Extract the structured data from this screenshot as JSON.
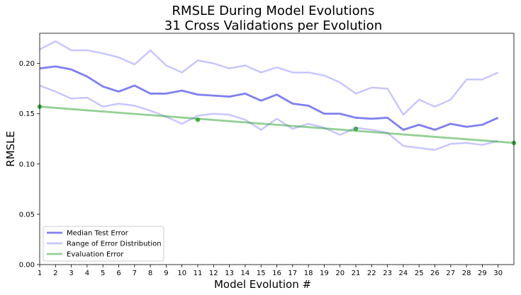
{
  "chart_data": {
    "type": "line",
    "title": [
      "RMSLE During Model Evolutions",
      "31 Cross Validations per Evolution"
    ],
    "xlabel": "Model Evolution #",
    "ylabel": "RMSLE",
    "xlim": [
      1,
      31
    ],
    "ylim": [
      0,
      0.23
    ],
    "x_ticks": [
      1,
      2,
      3,
      4,
      5,
      6,
      7,
      8,
      9,
      10,
      11,
      12,
      13,
      14,
      15,
      16,
      17,
      18,
      19,
      20,
      21,
      22,
      23,
      24,
      25,
      26,
      27,
      28,
      29,
      30
    ],
    "y_ticks": [
      "0.00",
      "0.05",
      "0.10",
      "0.15",
      "0.20"
    ],
    "legend_position": "lower-left",
    "x": [
      1,
      2,
      3,
      4,
      5,
      6,
      7,
      8,
      9,
      10,
      11,
      12,
      13,
      14,
      15,
      16,
      17,
      18,
      19,
      20,
      21,
      22,
      23,
      24,
      25,
      26,
      27,
      28,
      29,
      30
    ],
    "series": [
      {
        "name": "Median Test Error",
        "color": "#0000e6",
        "values": [
          0.195,
          0.197,
          0.194,
          0.187,
          0.177,
          0.172,
          0.178,
          0.17,
          0.17,
          0.173,
          0.169,
          0.168,
          0.167,
          0.17,
          0.163,
          0.169,
          0.16,
          0.158,
          0.15,
          0.15,
          0.146,
          0.145,
          0.146,
          0.134,
          0.139,
          0.134,
          0.14,
          0.137,
          0.139,
          0.146
        ]
      },
      {
        "name": "Range of Error Distribution",
        "color": "#9999ff",
        "upper": [
          0.214,
          0.222,
          0.213,
          0.213,
          0.21,
          0.206,
          0.199,
          0.213,
          0.198,
          0.191,
          0.203,
          0.2,
          0.195,
          0.198,
          0.191,
          0.196,
          0.191,
          0.191,
          0.188,
          0.181,
          0.17,
          0.176,
          0.175,
          0.149,
          0.164,
          0.157,
          0.164,
          0.184,
          0.184,
          0.191
        ],
        "lower": [
          0.178,
          0.172,
          0.165,
          0.166,
          0.157,
          0.16,
          0.158,
          0.153,
          0.147,
          0.14,
          0.148,
          0.15,
          0.149,
          0.144,
          0.134,
          0.145,
          0.135,
          0.14,
          0.136,
          0.129,
          0.136,
          0.134,
          0.131,
          0.118,
          0.116,
          0.114,
          0.12,
          0.121,
          0.119,
          0.123
        ]
      },
      {
        "name": "Evaluation Error",
        "color": "#2ca02c",
        "x_line": [
          1,
          31
        ],
        "values_line": [
          0.157,
          0.121
        ],
        "points_x": [
          1,
          11,
          21,
          31
        ],
        "points_y": [
          0.157,
          0.144,
          0.135,
          0.121
        ]
      }
    ]
  }
}
